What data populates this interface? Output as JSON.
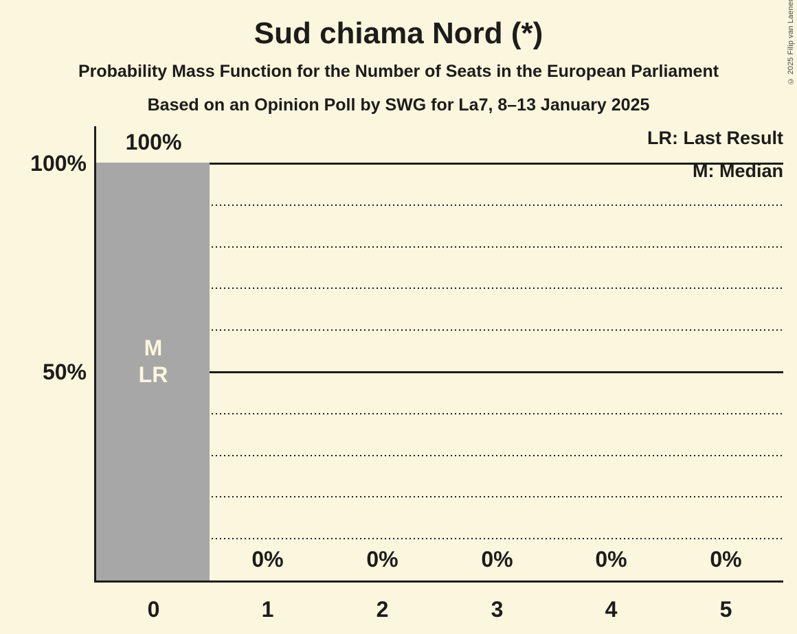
{
  "page": {
    "background_color": "#FBF6DE",
    "text_color": "#1D1C1A"
  },
  "copyright": "© 2025 Filip van Laenen",
  "chart_data": {
    "type": "bar",
    "title": "Sud chiama Nord (*)",
    "subtitle": "Probability Mass Function for the Number of Seats in the European Parliament",
    "source_line": "Based on an Opinion Poll by SWG for La7, 8–13 January 2025",
    "xlabel": "",
    "ylabel": "",
    "categories": [
      "0",
      "1",
      "2",
      "3",
      "4",
      "5"
    ],
    "values": [
      100,
      0,
      0,
      0,
      0,
      0
    ],
    "value_labels": [
      "100%",
      "0%",
      "0%",
      "0%",
      "0%",
      "0%"
    ],
    "ylim": [
      0,
      100
    ],
    "ytick_labels": {
      "y100": "100%",
      "y50": "50%"
    },
    "gridlines": {
      "solid": [
        100,
        50
      ],
      "dotted": [
        90,
        80,
        70,
        60,
        40,
        30,
        20,
        10
      ]
    },
    "legend": {
      "last_result": "LR: Last Result",
      "median": "M: Median",
      "position": "top-right"
    },
    "bar_annotation": "M\nLR",
    "median_seat": "0",
    "last_result_seat": "0",
    "bar_color": "#A7A7A7",
    "bar_text_color": "#FBF6DE",
    "grid_color": "#1D1C1A"
  }
}
